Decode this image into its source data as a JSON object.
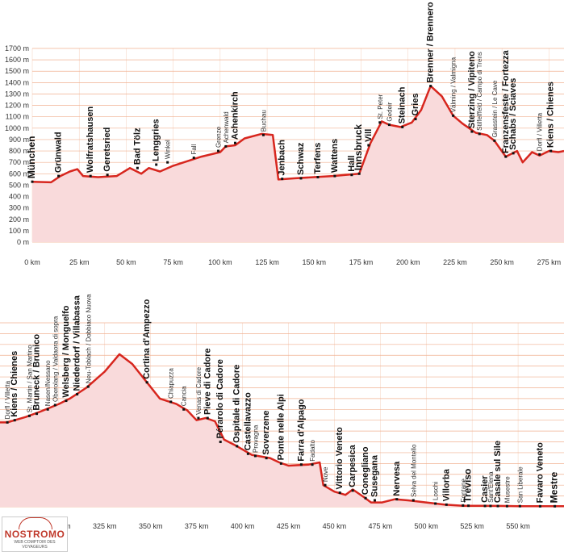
{
  "chart_data": [
    {
      "type": "area",
      "title": "",
      "xlabel": "",
      "ylabel": "",
      "x_unit": "km",
      "y_unit": "m",
      "xlim": [
        0,
        283
      ],
      "ylim": [
        0,
        1700
      ],
      "yticks": [
        "0 m",
        "100 m",
        "200 m",
        "300 m",
        "400 m",
        "500 m",
        "600 m",
        "700 m",
        "800 m",
        "900 m",
        "1000 m",
        "1100 m",
        "1200 m",
        "1300 m",
        "1400 m",
        "1500 m",
        "1600 m",
        "1700 m"
      ],
      "xticks": [
        "0 km",
        "25 km",
        "50 km",
        "75 km",
        "100 km",
        "125 km",
        "150 km",
        "175 km",
        "200 km",
        "225 km",
        "250 km",
        "275 km"
      ],
      "grid": true,
      "colors": {
        "line": "#d7261e",
        "fill": "#f9dadb",
        "grid": "#f0b090"
      },
      "profile": [
        [
          0,
          530
        ],
        [
          10,
          525
        ],
        [
          15,
          580
        ],
        [
          20,
          620
        ],
        [
          24,
          640
        ],
        [
          27,
          580
        ],
        [
          35,
          570
        ],
        [
          45,
          580
        ],
        [
          52,
          650
        ],
        [
          58,
          600
        ],
        [
          62,
          650
        ],
        [
          68,
          620
        ],
        [
          75,
          670
        ],
        [
          90,
          750
        ],
        [
          100,
          790
        ],
        [
          103,
          840
        ],
        [
          108,
          850
        ],
        [
          113,
          910
        ],
        [
          122,
          950
        ],
        [
          128,
          940
        ],
        [
          131,
          550
        ],
        [
          140,
          560
        ],
        [
          150,
          570
        ],
        [
          160,
          580
        ],
        [
          174,
          600
        ],
        [
          180,
          870
        ],
        [
          186,
          1060
        ],
        [
          190,
          1030
        ],
        [
          196,
          1010
        ],
        [
          202,
          1050
        ],
        [
          207,
          1160
        ],
        [
          212,
          1370
        ],
        [
          218,
          1280
        ],
        [
          224,
          1110
        ],
        [
          229,
          1040
        ],
        [
          236,
          960
        ],
        [
          242,
          940
        ],
        [
          246,
          890
        ],
        [
          252,
          750
        ],
        [
          258,
          800
        ],
        [
          261,
          700
        ],
        [
          266,
          790
        ],
        [
          270,
          760
        ],
        [
          275,
          800
        ],
        [
          280,
          790
        ],
        [
          283,
          800
        ]
      ],
      "places": [
        {
          "label": "München",
          "km": 0,
          "elev": 530,
          "style": "city"
        },
        {
          "label": "Grünwald",
          "km": 14,
          "elev": 580,
          "style": "major"
        },
        {
          "label": "Wolfratshausen",
          "km": 31,
          "elev": 580,
          "style": "major"
        },
        {
          "label": "Geretsried",
          "km": 40,
          "elev": 590,
          "style": "major"
        },
        {
          "label": "Bad Tölz",
          "km": 56,
          "elev": 650,
          "style": "major"
        },
        {
          "label": "Lenggries",
          "km": 66,
          "elev": 680,
          "style": "major"
        },
        {
          "label": "Winkel",
          "km": 72,
          "elev": 700,
          "style": "minor"
        },
        {
          "label": "Fall",
          "km": 86,
          "elev": 740,
          "style": "minor"
        },
        {
          "label": "Grenze",
          "km": 99,
          "elev": 800,
          "style": "minor"
        },
        {
          "label": "Achenwald",
          "km": 103,
          "elev": 840,
          "style": "minor"
        },
        {
          "label": "Achenkirch",
          "km": 108,
          "elev": 870,
          "style": "major"
        },
        {
          "label": "Buchau",
          "km": 123,
          "elev": 940,
          "style": "minor"
        },
        {
          "label": "Jenbach",
          "km": 133,
          "elev": 555,
          "style": "major"
        },
        {
          "label": "Schwaz",
          "km": 143,
          "elev": 560,
          "style": "major"
        },
        {
          "label": "Terfens",
          "km": 152,
          "elev": 570,
          "style": "major"
        },
        {
          "label": "Wattens",
          "km": 161,
          "elev": 580,
          "style": "major"
        },
        {
          "label": "Hall",
          "km": 170,
          "elev": 590,
          "style": "major"
        },
        {
          "label": "Innsbruck",
          "km": 174,
          "elev": 600,
          "style": "city"
        },
        {
          "label": "Vill",
          "km": 179,
          "elev": 850,
          "style": "major"
        },
        {
          "label": "St. Peter",
          "km": 185,
          "elev": 1050,
          "style": "minor"
        },
        {
          "label": "Gedeir",
          "km": 190,
          "elev": 1030,
          "style": "minor"
        },
        {
          "label": "Steinach",
          "km": 197,
          "elev": 1010,
          "style": "major"
        },
        {
          "label": "Gries",
          "km": 204,
          "elev": 1080,
          "style": "major"
        },
        {
          "label": "Brenner / Brennero",
          "km": 212,
          "elev": 1370,
          "style": "major"
        },
        {
          "label": "Välming / Valmigna",
          "km": 224,
          "elev": 1110,
          "style": "minor"
        },
        {
          "label": "Sterzing / Vipiteno",
          "km": 234,
          "elev": 970,
          "style": "major"
        },
        {
          "label": "Stilfelffeld / Campo di Trens",
          "km": 238,
          "elev": 950,
          "style": "minor"
        },
        {
          "label": "Grasstein / Le Cave",
          "km": 246,
          "elev": 890,
          "style": "minor"
        },
        {
          "label": "Franzensfeste / Fortezza",
          "km": 252,
          "elev": 750,
          "style": "major"
        },
        {
          "label": "Schabs / Sciaves",
          "km": 256,
          "elev": 780,
          "style": "major"
        },
        {
          "label": "Dorfl / Villetta",
          "km": 270,
          "elev": 770,
          "style": "minor"
        },
        {
          "label": "Kiens / Chienes",
          "km": 276,
          "elev": 800,
          "style": "major"
        }
      ]
    },
    {
      "type": "area",
      "title": "",
      "xlabel": "",
      "ylabel": "",
      "x_unit": "km",
      "y_unit": "m",
      "xlim": [
        268,
        575
      ],
      "ylim": [
        0,
        1700
      ],
      "xticks": [
        "300 km",
        "325 km",
        "350 km",
        "375 km",
        "400 km",
        "425 km",
        "450 km",
        "475 km",
        "500 km",
        "525 km",
        "550 km"
      ],
      "grid": true,
      "colors": {
        "line": "#d7261e",
        "fill": "#f9dadb",
        "grid": "#f0b090"
      },
      "profile": [
        [
          268,
          780
        ],
        [
          272,
          780
        ],
        [
          276,
          800
        ],
        [
          282,
          830
        ],
        [
          290,
          880
        ],
        [
          300,
          950
        ],
        [
          306,
          1000
        ],
        [
          315,
          1100
        ],
        [
          325,
          1250
        ],
        [
          333,
          1410
        ],
        [
          340,
          1320
        ],
        [
          348,
          1150
        ],
        [
          355,
          1000
        ],
        [
          364,
          950
        ],
        [
          370,
          890
        ],
        [
          375,
          800
        ],
        [
          380,
          820
        ],
        [
          385,
          790
        ],
        [
          390,
          620
        ],
        [
          397,
          560
        ],
        [
          405,
          480
        ],
        [
          415,
          450
        ],
        [
          420,
          410
        ],
        [
          425,
          380
        ],
        [
          436,
          390
        ],
        [
          442,
          410
        ],
        [
          444,
          200
        ],
        [
          450,
          140
        ],
        [
          456,
          110
        ],
        [
          460,
          160
        ],
        [
          466,
          90
        ],
        [
          470,
          40
        ],
        [
          476,
          40
        ],
        [
          483,
          70
        ],
        [
          490,
          60
        ],
        [
          500,
          40
        ],
        [
          510,
          20
        ],
        [
          520,
          10
        ],
        [
          530,
          10
        ],
        [
          540,
          8
        ],
        [
          550,
          6
        ],
        [
          560,
          5
        ],
        [
          568,
          5
        ],
        [
          575,
          5
        ]
      ],
      "places": [
        {
          "label": "Dorfl / Villetta",
          "km": 272,
          "elev": 780,
          "style": "minor"
        },
        {
          "label": "Kiens / Chienes",
          "km": 276,
          "elev": 800,
          "style": "major"
        },
        {
          "label": "St. Martin / San Martino",
          "km": 284,
          "elev": 840,
          "style": "minor"
        },
        {
          "label": "Bruneck / Brunico",
          "km": 288,
          "elev": 860,
          "style": "major"
        },
        {
          "label": "Nasen/Nessano",
          "km": 294,
          "elev": 900,
          "style": "minor"
        },
        {
          "label": "Oberolang / Valdaora di sopra",
          "km": 298,
          "elev": 940,
          "style": "minor"
        },
        {
          "label": "Welsberg / Monguelfo",
          "km": 304,
          "elev": 980,
          "style": "major"
        },
        {
          "label": "Niederdorf / Villabassa",
          "km": 310,
          "elev": 1040,
          "style": "major"
        },
        {
          "label": "Neu-Toblach / Dobbiaco Nuova",
          "km": 316,
          "elev": 1110,
          "style": "minor"
        },
        {
          "label": "Cortina d'Ampezzo",
          "km": 348,
          "elev": 1150,
          "style": "major"
        },
        {
          "label": "Chiapuzza",
          "km": 361,
          "elev": 970,
          "style": "minor"
        },
        {
          "label": "Cancia",
          "km": 368,
          "elev": 900,
          "style": "minor"
        },
        {
          "label": "Venas di Cadore",
          "km": 376,
          "elev": 820,
          "style": "minor"
        },
        {
          "label": "Pieve di Cadore",
          "km": 381,
          "elev": 820,
          "style": "major"
        },
        {
          "label": "Pérarolo di Cadore",
          "km": 388,
          "elev": 600,
          "style": "major"
        },
        {
          "label": "Ospitale di Cadore",
          "km": 397,
          "elev": 560,
          "style": "major"
        },
        {
          "label": "Castellavazzo",
          "km": 403,
          "elev": 490,
          "style": "major"
        },
        {
          "label": "Provagna",
          "km": 407,
          "elev": 470,
          "style": "minor"
        },
        {
          "label": "Soverzene",
          "km": 413,
          "elev": 450,
          "style": "major"
        },
        {
          "label": "Ponte nelle Alpi",
          "km": 421,
          "elev": 400,
          "style": "major"
        },
        {
          "label": "Farra d'Alpago",
          "km": 432,
          "elev": 390,
          "style": "major"
        },
        {
          "label": "Fadalto",
          "km": 438,
          "elev": 390,
          "style": "minor"
        },
        {
          "label": "Nove",
          "km": 445,
          "elev": 200,
          "style": "minor"
        },
        {
          "label": "Vittorio Veneto",
          "km": 453,
          "elev": 130,
          "style": "major"
        },
        {
          "label": "Carpesica",
          "km": 460,
          "elev": 150,
          "style": "major"
        },
        {
          "label": "Conegliano",
          "km": 467,
          "elev": 80,
          "style": "major"
        },
        {
          "label": "Susegana",
          "km": 472,
          "elev": 60,
          "style": "major"
        },
        {
          "label": "Nervesa",
          "km": 484,
          "elev": 70,
          "style": "major"
        },
        {
          "label": "Selva del Montello",
          "km": 493,
          "elev": 60,
          "style": "minor"
        },
        {
          "label": "Loschi",
          "km": 505,
          "elev": 30,
          "style": "minor"
        },
        {
          "label": "Villorba",
          "km": 511,
          "elev": 20,
          "style": "major"
        },
        {
          "label": "Fontane",
          "km": 520,
          "elev": 12,
          "style": "minor"
        },
        {
          "label": "Treviso",
          "km": 523,
          "elev": 10,
          "style": "city"
        },
        {
          "label": "Casier",
          "km": 532,
          "elev": 8,
          "style": "major"
        },
        {
          "label": "Sant'Elena",
          "km": 535,
          "elev": 8,
          "style": "minor"
        },
        {
          "label": "Casale sul Sile",
          "km": 539,
          "elev": 7,
          "style": "major"
        },
        {
          "label": "Musestre",
          "km": 544,
          "elev": 6,
          "style": "minor"
        },
        {
          "label": "San Liberale",
          "km": 551,
          "elev": 6,
          "style": "minor"
        },
        {
          "label": "Favaro Veneto",
          "km": 562,
          "elev": 5,
          "style": "major"
        },
        {
          "label": "Mestre",
          "km": 570,
          "elev": 5,
          "style": "city"
        }
      ]
    }
  ],
  "logo": {
    "brand": "NOSTROMO",
    "tagline": "WEB COMPTOIR DES VOYAGEURS"
  }
}
